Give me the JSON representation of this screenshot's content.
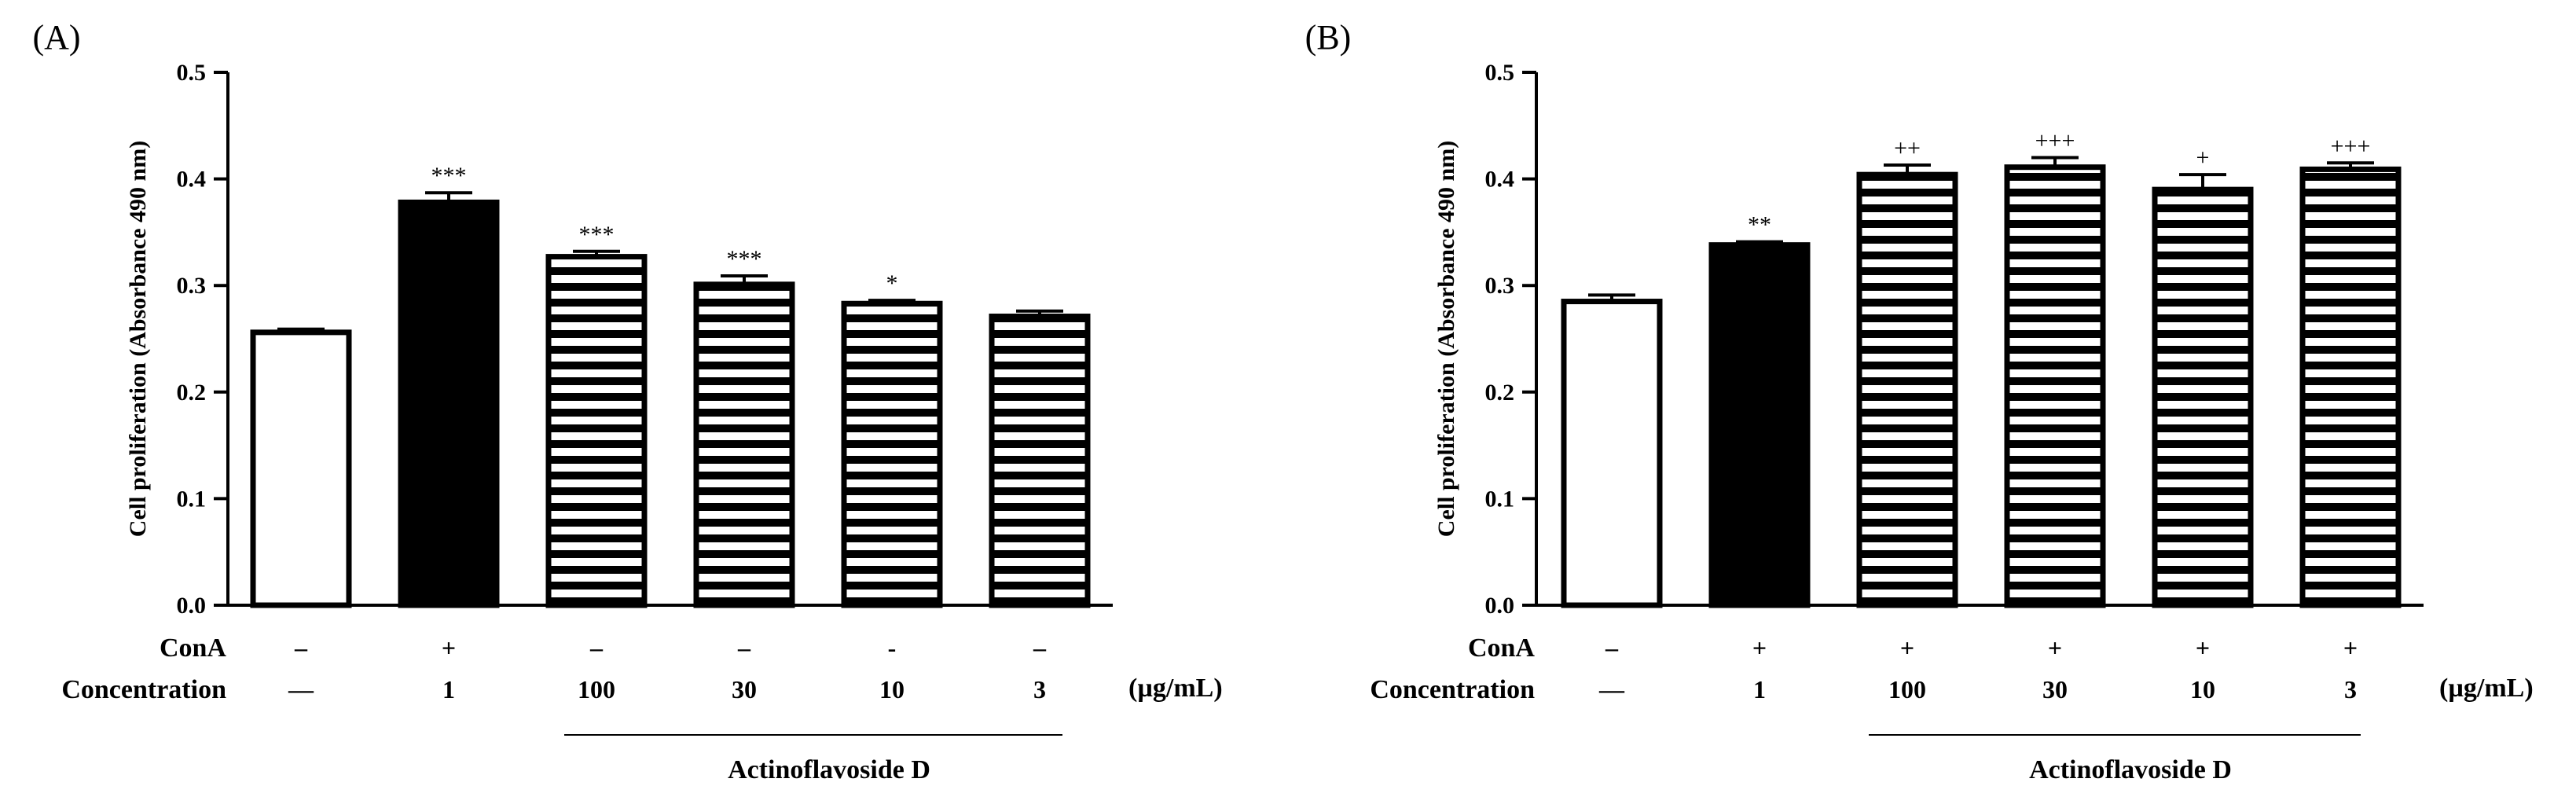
{
  "chart_data": [
    {
      "type": "bar",
      "panel_label": "(A)",
      "ylabel": "Cell proliferation (Absorbance 490 nm)",
      "ylim": [
        0,
        0.5
      ],
      "yticks": [
        "0.0",
        "0.1",
        "0.2",
        "0.3",
        "0.4",
        "0.5"
      ],
      "values": [
        0.256,
        0.378,
        0.327,
        0.301,
        0.283,
        0.271
      ],
      "errors": [
        0.003,
        0.009,
        0.005,
        0.008,
        0.003,
        0.005
      ],
      "fills": [
        "white",
        "black",
        "striped",
        "striped",
        "striped",
        "striped"
      ],
      "significance": [
        "",
        "***",
        "***",
        "***",
        "*",
        ""
      ],
      "row1_label": "ConA",
      "row1": [
        "–",
        "+",
        "–",
        "–",
        "-",
        "–"
      ],
      "row2_label": "Concentration",
      "row2": [
        "—",
        "1",
        "100",
        "30",
        "10",
        "3"
      ],
      "unit": "(µg/mL)",
      "group_label": "Actinoflavoside D"
    },
    {
      "type": "bar",
      "panel_label": "(B)",
      "ylabel": "Cell proliferation (Absorbance 490 nm)",
      "ylim": [
        0,
        0.5
      ],
      "yticks": [
        "0.0",
        "0.1",
        "0.2",
        "0.3",
        "0.4",
        "0.5"
      ],
      "values": [
        0.285,
        0.338,
        0.404,
        0.411,
        0.39,
        0.409
      ],
      "errors": [
        0.006,
        0.003,
        0.009,
        0.009,
        0.014,
        0.006
      ],
      "fills": [
        "white",
        "black",
        "striped",
        "striped",
        "striped",
        "striped"
      ],
      "significance": [
        "",
        "**",
        "++",
        "+++",
        "+",
        "+++"
      ],
      "row1_label": "ConA",
      "row1": [
        "–",
        "+",
        "+",
        "+",
        "+",
        "+"
      ],
      "row2_label": "Concentration",
      "row2": [
        "—",
        "1",
        "100",
        "30",
        "10",
        "3"
      ],
      "unit": "(µg/mL)",
      "group_label": "Actinoflavoside D"
    }
  ]
}
